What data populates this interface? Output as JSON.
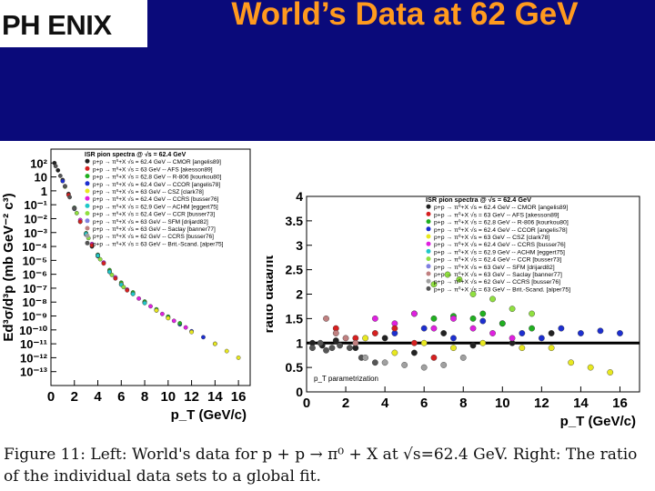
{
  "header": {
    "logo_text": "PH ENIX",
    "title": "World’s Data at 62 GeV",
    "colors": {
      "band": "#0a0a7a",
      "title": "#ff9a1e"
    }
  },
  "caption": "Figure 11: Left: World's data for p + p → π⁰ + X at √s=62.4 GeV. Right: The ratio of the individual data sets to a global fit.",
  "legend": {
    "title": "ISR pion spectra @ √s = 62.4 GeV",
    "entries": [
      {
        "label": "p+p → π⁰+X √s = 62.4 GeV -- CMOR [angelis89]",
        "color": "#222222"
      },
      {
        "label": "p+p → π⁰+X √s = 63 GeV -- AFS [akesson89]",
        "color": "#d62020"
      },
      {
        "label": "p+p → π⁰+X √s = 62.8 GeV -- R-806 [kourkou80]",
        "color": "#20b020"
      },
      {
        "label": "p+p → π⁰+X √s = 62.4 GeV -- CCOR [angelis78]",
        "color": "#1d2fd0"
      },
      {
        "label": "p+p → π⁰+X √s = 63 GeV -- CSZ [clark78]",
        "color": "#e8e820"
      },
      {
        "label": "p+p → π⁰+X √s = 62.4 GeV -- CCRS [busser76]",
        "color": "#e020e0"
      },
      {
        "label": "p+p → π⁰+X √s = 62.9 GeV -- ACHM [eggert75]",
        "color": "#20c8c8"
      },
      {
        "label": "p+p → π⁰+X √s = 62.4 GeV -- CCR [busser73]",
        "color": "#90e040"
      },
      {
        "label": "p+p → π⁰+X √s = 63 GeV -- SFM [drijard82]",
        "color": "#8080e0"
      },
      {
        "label": "p+p → π⁰+X √s = 63 GeV -- Saclay [banner77]",
        "color": "#c08080"
      },
      {
        "label": "p+p → π⁰+X √s = 62 GeV -- CCRS [busser76]",
        "color": "#a0a0a0"
      },
      {
        "label": "p+p → π⁰+X √s = 63 GeV -- Brit.-Scand. [alper75]",
        "color": "#555555"
      }
    ]
  },
  "chart_data": [
    {
      "type": "scatter",
      "title": "",
      "xlabel": "p_T (GeV/c)",
      "ylabel": "Ed³σ/d³p (mb GeV⁻² c³)",
      "log_y": true,
      "xlim": [
        0,
        17
      ],
      "ylim": [
        1e-14,
        1000
      ],
      "xticks": [
        0,
        2,
        4,
        6,
        8,
        10,
        12,
        14,
        16
      ],
      "yticks": [
        {
          "v": 100,
          "t": "10²"
        },
        {
          "v": 10,
          "t": "10"
        },
        {
          "v": 1,
          "t": "1"
        },
        {
          "v": 0.1,
          "t": "10⁻¹"
        },
        {
          "v": 0.01,
          "t": "10⁻²"
        },
        {
          "v": 0.001,
          "t": "10⁻³"
        },
        {
          "v": 0.0001,
          "t": "10⁻⁴"
        },
        {
          "v": 1e-05,
          "t": "10⁻⁵"
        },
        {
          "v": 1e-06,
          "t": "10⁻⁶"
        },
        {
          "v": 1e-07,
          "t": "10⁻⁷"
        },
        {
          "v": 1e-08,
          "t": "10⁻⁸"
        },
        {
          "v": 1e-09,
          "t": "10⁻⁹"
        },
        {
          "v": 1e-10,
          "t": "10⁻¹⁰"
        },
        {
          "v": 1e-11,
          "t": "10⁻¹¹"
        },
        {
          "v": 1e-12,
          "t": "10⁻¹²"
        },
        {
          "v": 1e-13,
          "t": "10⁻¹³"
        }
      ],
      "series": [
        {
          "color": "#222222",
          "points": [
            [
              0.3,
              100
            ],
            [
              0.6,
              30
            ],
            [
              1.0,
              6
            ],
            [
              1.5,
              0.6
            ],
            [
              2.0,
              0.06
            ],
            [
              2.5,
              0.006
            ],
            [
              3.0,
              0.0008
            ],
            [
              3.5,
              0.0001
            ],
            [
              4.0,
              2e-05
            ],
            [
              5.0,
              1.5e-06
            ],
            [
              6.0,
              1.8e-07
            ],
            [
              7.0,
              4e-08
            ],
            [
              8.0,
              1e-08
            ]
          ]
        },
        {
          "color": "#1d2fd0",
          "points": [
            [
              1.0,
              5
            ],
            [
              2.0,
              0.05
            ],
            [
              3.0,
              0.0007
            ],
            [
              4.0,
              2.5e-05
            ],
            [
              5.0,
              1.5e-06
            ],
            [
              6.0,
              2e-07
            ],
            [
              7.0,
              4e-08
            ],
            [
              8.0,
              9e-09
            ],
            [
              9.0,
              2.5e-09
            ],
            [
              10.0,
              8e-10
            ],
            [
              11.0,
              2.5e-10
            ],
            [
              12.0,
              8e-11
            ],
            [
              13.0,
              3e-11
            ],
            [
              14.0,
              1e-11
            ]
          ]
        },
        {
          "color": "#20b020",
          "points": [
            [
              2.0,
              0.06
            ],
            [
              3.0,
              0.0009
            ],
            [
              4.0,
              2.5e-05
            ],
            [
              5.0,
              2e-06
            ],
            [
              6.0,
              2.5e-07
            ],
            [
              7.0,
              5e-08
            ],
            [
              8.0,
              1.1e-08
            ],
            [
              9.0,
              3e-09
            ],
            [
              10.0,
              9e-10
            ],
            [
              11.0,
              3e-10
            ]
          ]
        },
        {
          "color": "#e020e0",
          "points": [
            [
              2.5,
              0.008
            ],
            [
              3.5,
              0.00015
            ],
            [
              4.5,
              7e-06
            ],
            [
              5.5,
              6e-07
            ],
            [
              6.5,
              8e-08
            ],
            [
              7.5,
              1.8e-08
            ],
            [
              8.5,
              5e-09
            ],
            [
              9.5,
              1.4e-09
            ],
            [
              10.5,
              4.5e-10
            ],
            [
              11.5,
              1.5e-10
            ]
          ]
        },
        {
          "color": "#e8e820",
          "points": [
            [
              3.0,
              0.0008
            ],
            [
              4.0,
              2.2e-05
            ],
            [
              5.0,
              1.6e-06
            ],
            [
              6.0,
              2e-07
            ],
            [
              7.0,
              4e-08
            ],
            [
              8.0,
              9e-09
            ],
            [
              9.0,
              2.5e-09
            ],
            [
              10.0,
              7e-10
            ],
            [
              12.0,
              7e-11
            ],
            [
              14.0,
              1e-11
            ],
            [
              15.0,
              3e-12
            ],
            [
              16.0,
              1e-12
            ]
          ]
        },
        {
          "color": "#d62020",
          "points": [
            [
              1.5,
              0.5
            ],
            [
              2.5,
              0.006
            ],
            [
              3.5,
              0.00012
            ],
            [
              4.5,
              6e-06
            ],
            [
              5.5,
              5e-07
            ],
            [
              6.5,
              7e-08
            ]
          ]
        },
        {
          "color": "#20c8c8",
          "points": [
            [
              2.0,
              0.055
            ],
            [
              3.0,
              0.0008
            ],
            [
              4.0,
              2.2e-05
            ],
            [
              5.0,
              1.5e-06
            ],
            [
              6.0,
              1.8e-07
            ],
            [
              7.0,
              3.8e-08
            ],
            [
              8.0,
              8.5e-09
            ]
          ]
        },
        {
          "color": "#90e040",
          "points": [
            [
              1.2,
              2
            ],
            [
              2.2,
              0.025
            ],
            [
              3.2,
              0.0004
            ],
            [
              4.2,
              1.2e-05
            ],
            [
              5.2,
              9e-07
            ],
            [
              6.2,
              1.2e-07
            ]
          ]
        },
        {
          "color": "#555555",
          "points": [
            [
              0.4,
              60
            ],
            [
              0.8,
              12
            ],
            [
              1.2,
              2.2
            ],
            [
              1.6,
              0.35
            ],
            [
              2.0,
              0.055
            ]
          ]
        }
      ]
    },
    {
      "type": "scatter",
      "title": "",
      "xlabel": "p_T (GeV/c)",
      "ylabel": "ratio data/fit",
      "xlim": [
        0,
        17
      ],
      "ylim": [
        0,
        4
      ],
      "xticks": [
        0,
        2,
        4,
        6,
        8,
        10,
        12,
        14,
        16
      ],
      "yticks": [
        0,
        0.5,
        1,
        1.5,
        2,
        2.5,
        3,
        3.5,
        4
      ],
      "reference_line": 1,
      "annotation": "p_T parametrization",
      "series": [
        {
          "color": "#222222",
          "points": [
            [
              0.3,
              1.0
            ],
            [
              0.8,
              0.95
            ],
            [
              1.5,
              1.05
            ],
            [
              2.5,
              0.9
            ],
            [
              4.0,
              1.1
            ],
            [
              5.5,
              0.8
            ],
            [
              7.0,
              1.2
            ],
            [
              8.5,
              0.95
            ],
            [
              10.5,
              1.0
            ],
            [
              12.5,
              1.2
            ]
          ]
        },
        {
          "color": "#1d2fd0",
          "points": [
            [
              4.5,
              1.2
            ],
            [
              6.0,
              1.3
            ],
            [
              7.5,
              1.1
            ],
            [
              9.0,
              1.45
            ],
            [
              10.0,
              1.4
            ],
            [
              11.0,
              1.2
            ],
            [
              12.0,
              1.1
            ],
            [
              13.0,
              1.3
            ],
            [
              14.0,
              1.2
            ],
            [
              15.0,
              1.25
            ],
            [
              16.0,
              1.2
            ]
          ]
        },
        {
          "color": "#20b020",
          "points": [
            [
              5.5,
              1.6
            ],
            [
              6.5,
              1.5
            ],
            [
              7.5,
              1.55
            ],
            [
              8.5,
              1.5
            ],
            [
              9.0,
              1.6
            ],
            [
              10.0,
              1.4
            ],
            [
              11.5,
              1.3
            ]
          ]
        },
        {
          "color": "#e020e0",
          "points": [
            [
              3.5,
              1.5
            ],
            [
              4.5,
              1.4
            ],
            [
              5.5,
              1.6
            ],
            [
              6.5,
              1.3
            ],
            [
              7.5,
              1.5
            ],
            [
              8.5,
              1.3
            ],
            [
              9.5,
              1.2
            ],
            [
              10.5,
              1.1
            ]
          ]
        },
        {
          "color": "#e8e820",
          "points": [
            [
              3.0,
              1.1
            ],
            [
              4.5,
              0.8
            ],
            [
              6.0,
              1.0
            ],
            [
              7.5,
              0.9
            ],
            [
              9.0,
              1.0
            ],
            [
              11.0,
              0.9
            ],
            [
              12.5,
              0.9
            ],
            [
              13.5,
              0.6
            ],
            [
              14.5,
              0.5
            ],
            [
              15.5,
              0.4
            ]
          ]
        },
        {
          "color": "#d62020",
          "points": [
            [
              1.5,
              1.3
            ],
            [
              2.5,
              1.1
            ],
            [
              3.5,
              1.2
            ],
            [
              4.5,
              1.3
            ],
            [
              5.5,
              1.0
            ],
            [
              6.5,
              0.7
            ]
          ]
        },
        {
          "color": "#90e040",
          "points": [
            [
              6.5,
              2.2
            ],
            [
              7.2,
              2.4
            ],
            [
              7.8,
              2.3
            ],
            [
              8.5,
              2.0
            ],
            [
              9.5,
              1.9
            ],
            [
              10.5,
              1.7
            ],
            [
              11.5,
              1.6
            ]
          ]
        },
        {
          "color": "#555555",
          "points": [
            [
              0.3,
              0.9
            ],
            [
              0.7,
              1.0
            ],
            [
              1.0,
              0.85
            ],
            [
              1.3,
              0.9
            ],
            [
              1.7,
              0.95
            ],
            [
              2.2,
              0.9
            ],
            [
              2.8,
              0.7
            ],
            [
              3.5,
              0.6
            ]
          ]
        },
        {
          "color": "#c08080",
          "points": [
            [
              1.0,
              1.5
            ],
            [
              1.5,
              1.2
            ],
            [
              2.0,
              1.1
            ],
            [
              2.5,
              1.0
            ]
          ]
        },
        {
          "color": "#a0a0a0",
          "points": [
            [
              3.0,
              0.7
            ],
            [
              4.0,
              0.6
            ],
            [
              5.0,
              0.55
            ],
            [
              6.0,
              0.5
            ],
            [
              7.0,
              0.55
            ],
            [
              8.0,
              0.7
            ]
          ]
        }
      ]
    }
  ]
}
